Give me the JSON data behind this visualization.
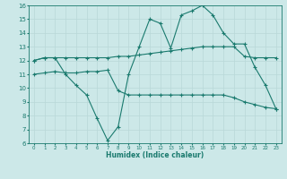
{
  "xlabel": "Humidex (Indice chaleur)",
  "bg_color": "#cce8e8",
  "line_color": "#1a7a6e",
  "grid_color": "#b8d8d8",
  "xlim": [
    -0.5,
    23.5
  ],
  "ylim": [
    6,
    16
  ],
  "xticks": [
    0,
    1,
    2,
    3,
    4,
    5,
    6,
    7,
    8,
    9,
    10,
    11,
    12,
    13,
    14,
    15,
    16,
    17,
    18,
    19,
    20,
    21,
    22,
    23
  ],
  "yticks": [
    6,
    7,
    8,
    9,
    10,
    11,
    12,
    13,
    14,
    15,
    16
  ],
  "line1_x": [
    0,
    1,
    2,
    3,
    4,
    5,
    6,
    7,
    8,
    9,
    10,
    11,
    12,
    13,
    14,
    15,
    16,
    17,
    18,
    19,
    20,
    21,
    22,
    23
  ],
  "line1_y": [
    12.0,
    12.2,
    12.2,
    11.0,
    10.2,
    9.5,
    7.8,
    6.2,
    7.2,
    11.0,
    13.0,
    15.0,
    14.7,
    12.9,
    15.3,
    15.6,
    16.0,
    15.3,
    14.0,
    13.2,
    13.2,
    11.5,
    10.2,
    8.5
  ],
  "line2_x": [
    0,
    1,
    2,
    3,
    4,
    5,
    6,
    7,
    8,
    9,
    10,
    11,
    12,
    13,
    14,
    15,
    16,
    17,
    18,
    19,
    20,
    21,
    22,
    23
  ],
  "line2_y": [
    11.0,
    11.1,
    11.2,
    11.1,
    11.1,
    11.2,
    11.2,
    11.3,
    9.8,
    9.5,
    9.5,
    9.5,
    9.5,
    9.5,
    9.5,
    9.5,
    9.5,
    9.5,
    9.5,
    9.3,
    9.0,
    8.8,
    8.6,
    8.5
  ],
  "line3_x": [
    0,
    1,
    2,
    3,
    4,
    5,
    6,
    7,
    8,
    9,
    10,
    11,
    12,
    13,
    14,
    15,
    16,
    17,
    18,
    19,
    20,
    21,
    22,
    23
  ],
  "line3_y": [
    12.0,
    12.2,
    12.2,
    12.2,
    12.2,
    12.2,
    12.2,
    12.2,
    12.3,
    12.3,
    12.4,
    12.5,
    12.6,
    12.7,
    12.8,
    12.9,
    13.0,
    13.0,
    13.0,
    13.0,
    12.3,
    12.2,
    12.2,
    12.2
  ]
}
